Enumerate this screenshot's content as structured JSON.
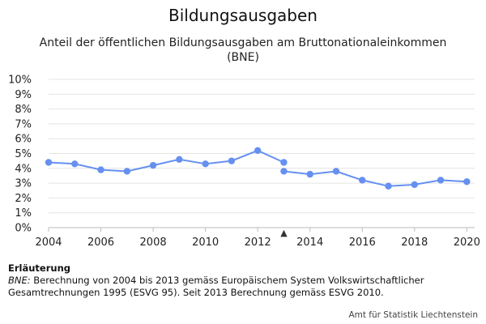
{
  "chart_data": {
    "type": "line",
    "title": "Bildungsausgaben",
    "subtitle_line1": "Anteil der öffentlichen Bildungsausgaben am Bruttonationaleinkommen",
    "subtitle_line2": "(BNE)",
    "ylim": [
      0,
      10
    ],
    "yticks": [
      "0%",
      "1%",
      "2%",
      "3%",
      "4%",
      "5%",
      "6%",
      "7%",
      "8%",
      "9%",
      "10%"
    ],
    "xlim": [
      2004,
      2020.3
    ],
    "xticks": [
      "2004",
      "2006",
      "2008",
      "2010",
      "2012",
      "2014",
      "2016",
      "2018",
      "2020"
    ],
    "grid": true,
    "series": [
      {
        "values_x": [
          2004,
          2005,
          2006,
          2007,
          2008,
          2009,
          2010,
          2011,
          2012,
          2013
        ],
        "values_y": [
          4.4,
          4.3,
          3.9,
          3.8,
          4.2,
          4.6,
          4.3,
          4.5,
          5.2,
          4.4
        ]
      },
      {
        "values_x": [
          2013,
          2014,
          2015,
          2016,
          2017,
          2018,
          2019,
          2020
        ],
        "values_y": [
          3.8,
          3.6,
          3.8,
          3.2,
          2.8,
          2.9,
          3.2,
          3.1
        ]
      }
    ],
    "break_marker_x": 2013,
    "break_marker_symbol": "▲",
    "color": "#6690f0"
  },
  "note": {
    "heading": "Erläuterung",
    "abbr": "BNE:",
    "text": " Berechnung von 2004 bis 2013 gemäss Europäischem System Volkswirtschaftlicher Gesamtrechnungen 1995 (ESVG 95). Seit 2013 Berechnung gemäss ESVG 2010."
  },
  "credit": "Amt für Statistik Liechtenstein"
}
